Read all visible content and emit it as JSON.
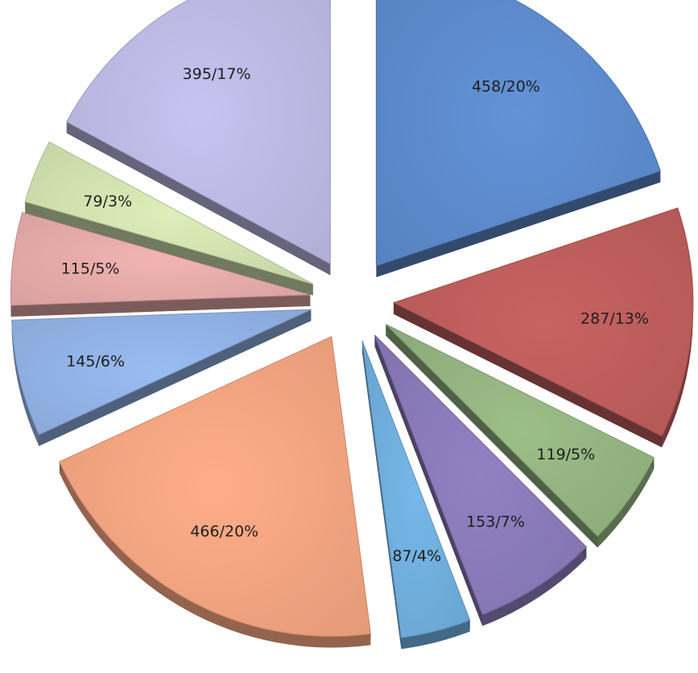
{
  "chart_data": {
    "type": "pie",
    "style": "exploded-3d",
    "slices": [
      {
        "value": 458,
        "percent": 20,
        "label": "458/20%",
        "color": "#5b87c8"
      },
      {
        "value": 287,
        "percent": 13,
        "label": "287/13%",
        "color": "#b95c5a"
      },
      {
        "value": 119,
        "percent": 5,
        "label": "119/5%",
        "color": "#90b07e"
      },
      {
        "value": 153,
        "percent": 7,
        "label": "153/7%",
        "color": "#8677b5"
      },
      {
        "value": 87,
        "percent": 4,
        "label": "87/4%",
        "color": "#6daad8"
      },
      {
        "value": 466,
        "percent": 20,
        "label": "466/20%",
        "color": "#eea07d"
      },
      {
        "value": 145,
        "percent": 6,
        "label": "145/6%",
        "color": "#8eaee0"
      },
      {
        "value": 115,
        "percent": 5,
        "label": "115/5%",
        "color": "#e0a7a5"
      },
      {
        "value": 79,
        "percent": 3,
        "label": "79/3%",
        "color": "#cddcab"
      },
      {
        "value": 395,
        "percent": 17,
        "label": "395/17%",
        "color": "#b8b5df"
      }
    ],
    "title": "",
    "legend": "none"
  }
}
